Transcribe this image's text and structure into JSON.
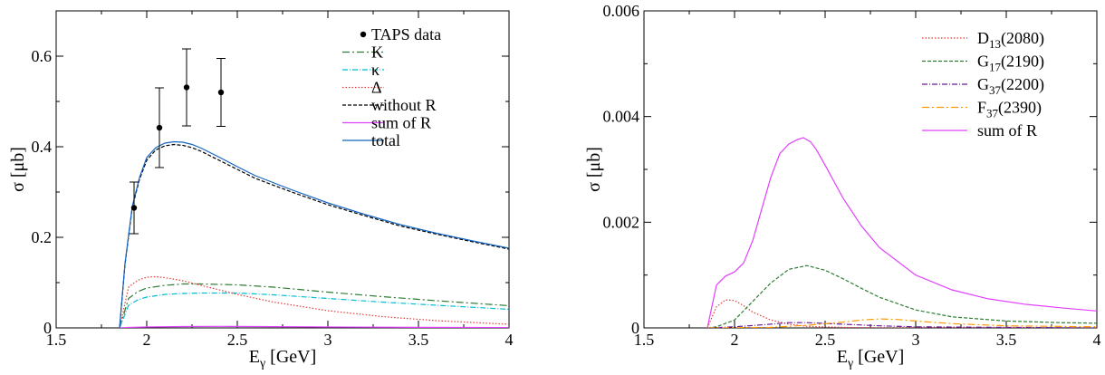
{
  "chart_data": [
    {
      "type": "line",
      "xlabel": "E",
      "xlabel_sub": "γ",
      "xlabel_unit": " [GeV]",
      "ylabel": "σ [μb]",
      "xlim": [
        1.5,
        4.0
      ],
      "ylim": [
        0,
        0.7
      ],
      "xticks": [
        1.5,
        2.0,
        2.5,
        3.0,
        3.5,
        4.0
      ],
      "xtick_labels": [
        "1.5",
        "2",
        "2.5",
        "3",
        "3.5",
        "4"
      ],
      "yticks": [
        0,
        0.2,
        0.4,
        0.6
      ],
      "ytick_labels": [
        "0",
        "0.2",
        "0.4",
        "0.6"
      ],
      "legend_position": "top-right",
      "data_points": {
        "name": "TAPS data",
        "x": [
          1.93,
          2.07,
          2.22,
          2.41
        ],
        "y": [
          0.265,
          0.442,
          0.531,
          0.52
        ],
        "err": [
          0.057,
          0.088,
          0.085,
          0.075
        ]
      },
      "series": [
        {
          "name": "K",
          "color": "#2e7d32",
          "dash": "8 3 2 3",
          "x": [
            1.85,
            1.9,
            1.95,
            2.0,
            2.1,
            2.2,
            2.3,
            2.5,
            2.7,
            3.0,
            3.3,
            3.6,
            4.0
          ],
          "y": [
            0,
            0.065,
            0.08,
            0.088,
            0.094,
            0.097,
            0.097,
            0.095,
            0.09,
            0.079,
            0.069,
            0.06,
            0.049
          ]
        },
        {
          "name": "κ",
          "color": "#00bcd4",
          "dash": "6 2 1 2",
          "x": [
            1.85,
            1.9,
            1.95,
            2.0,
            2.1,
            2.2,
            2.3,
            2.5,
            2.7,
            3.0,
            3.3,
            3.6,
            4.0
          ],
          "y": [
            0,
            0.05,
            0.062,
            0.068,
            0.074,
            0.076,
            0.077,
            0.077,
            0.073,
            0.065,
            0.057,
            0.05,
            0.041
          ]
        },
        {
          "name": "Δ",
          "color": "#e53935",
          "dash": "1.5 2",
          "x": [
            1.85,
            1.9,
            1.95,
            2.0,
            2.05,
            2.1,
            2.2,
            2.3,
            2.5,
            2.7,
            3.0,
            3.3,
            3.6,
            4.0
          ],
          "y": [
            0,
            0.09,
            0.105,
            0.112,
            0.113,
            0.111,
            0.104,
            0.094,
            0.074,
            0.057,
            0.038,
            0.025,
            0.016,
            0.008
          ]
        },
        {
          "name": "without R",
          "color": "#000000",
          "dash": "4 2",
          "x": [
            1.85,
            1.88,
            1.92,
            1.96,
            2.0,
            2.05,
            2.1,
            2.15,
            2.2,
            2.25,
            2.3,
            2.4,
            2.5,
            2.6,
            2.8,
            3.0,
            3.2,
            3.4,
            3.6,
            3.8,
            4.0
          ],
          "y": [
            0,
            0.14,
            0.265,
            0.328,
            0.37,
            0.393,
            0.402,
            0.405,
            0.403,
            0.398,
            0.39,
            0.37,
            0.35,
            0.33,
            0.3,
            0.272,
            0.248,
            0.225,
            0.207,
            0.19,
            0.174
          ]
        },
        {
          "name": "sum of R",
          "color": "#e040fb",
          "dash": "",
          "x": [
            1.85,
            1.9,
            2.0,
            2.2,
            2.4,
            2.6,
            3.0,
            3.5,
            4.0
          ],
          "y": [
            0,
            0.001,
            0.002,
            0.003,
            0.0035,
            0.003,
            0.002,
            0.0012,
            0.0008
          ]
        },
        {
          "name": "total",
          "color": "#1565c0",
          "dash": "",
          "x": [
            1.85,
            1.88,
            1.92,
            1.96,
            2.0,
            2.05,
            2.1,
            2.15,
            2.2,
            2.25,
            2.3,
            2.4,
            2.5,
            2.6,
            2.8,
            3.0,
            3.2,
            3.4,
            3.6,
            3.8,
            4.0
          ],
          "y": [
            0,
            0.142,
            0.268,
            0.332,
            0.376,
            0.398,
            0.408,
            0.411,
            0.41,
            0.405,
            0.397,
            0.377,
            0.356,
            0.336,
            0.305,
            0.276,
            0.251,
            0.228,
            0.209,
            0.192,
            0.176
          ]
        }
      ]
    },
    {
      "type": "line",
      "xlabel": "E",
      "xlabel_sub": "γ",
      "xlabel_unit": " [GeV]",
      "ylabel": "σ [μb]",
      "xlim": [
        1.5,
        4.0
      ],
      "ylim": [
        0,
        0.006
      ],
      "xticks": [
        1.5,
        2.0,
        2.5,
        3.0,
        3.5,
        4.0
      ],
      "xtick_labels": [
        "1.5",
        "2",
        "2.5",
        "3",
        "3.5",
        "4"
      ],
      "yticks": [
        0,
        0.002,
        0.004,
        0.006
      ],
      "ytick_labels": [
        "0",
        "0.002",
        "0.004",
        "0.006"
      ],
      "legend_position": "top-right",
      "series": [
        {
          "name": "D",
          "sub": "13",
          "suffix": "(2080)",
          "color": "#e53935",
          "dash": "1.5 2",
          "x": [
            1.85,
            1.9,
            1.95,
            2.0,
            2.05,
            2.1,
            2.2,
            2.3,
            2.4,
            2.6,
            2.8,
            3.0,
            4.0
          ],
          "y": [
            0,
            0.0004,
            0.00053,
            0.00052,
            0.00042,
            0.0003,
            0.00015,
            7e-05,
            3e-05,
            1e-05,
            0,
            0,
            0
          ]
        },
        {
          "name": "G",
          "sub": "17",
          "suffix": "(2190)",
          "color": "#2e7d32",
          "dash": "4 2",
          "x": [
            1.85,
            1.9,
            2.0,
            2.1,
            2.2,
            2.3,
            2.4,
            2.5,
            2.6,
            2.7,
            2.8,
            3.0,
            3.2,
            3.5,
            3.8,
            4.0
          ],
          "y": [
            0,
            2e-05,
            0.00015,
            0.0005,
            0.00085,
            0.00111,
            0.00118,
            0.00109,
            0.00093,
            0.00075,
            0.00058,
            0.00034,
            0.00021,
            0.00013,
            0.0001,
            9e-05
          ]
        },
        {
          "name": "G",
          "sub": "37",
          "suffix": "(2200)",
          "color": "#6a1b9a",
          "dash": "6 2 1 2",
          "x": [
            1.85,
            2.0,
            2.2,
            2.3,
            2.4,
            2.6,
            2.8,
            3.0,
            3.5,
            4.0
          ],
          "y": [
            0,
            2e-05,
            7e-05,
            0.0001,
            0.0001,
            7e-05,
            4e-05,
            2e-05,
            1e-05,
            0
          ]
        },
        {
          "name": "F",
          "sub": "37",
          "suffix": "(2390)",
          "color": "#ff9800",
          "dash": "8 3 2 3",
          "x": [
            1.85,
            2.2,
            2.4,
            2.6,
            2.7,
            2.8,
            2.9,
            3.0,
            3.2,
            3.5,
            4.0
          ],
          "y": [
            0,
            1e-05,
            5e-05,
            0.00011,
            0.00015,
            0.00017,
            0.00016,
            0.00013,
            8e-05,
            4e-05,
            2e-05
          ]
        },
        {
          "name": "sum of R",
          "sub": "",
          "suffix": "",
          "color": "#e040fb",
          "dash": "",
          "x": [
            1.85,
            1.9,
            1.95,
            2.0,
            2.05,
            2.1,
            2.15,
            2.2,
            2.25,
            2.3,
            2.35,
            2.38,
            2.42,
            2.45,
            2.5,
            2.6,
            2.7,
            2.8,
            3.0,
            3.2,
            3.4,
            3.6,
            3.8,
            4.0
          ],
          "y": [
            0,
            0.00081,
            0.00098,
            0.00106,
            0.00123,
            0.00165,
            0.00225,
            0.00285,
            0.0033,
            0.00348,
            0.00357,
            0.0036,
            0.00352,
            0.00338,
            0.00308,
            0.00245,
            0.00193,
            0.00152,
            0.001,
            0.00072,
            0.00055,
            0.00045,
            0.00038,
            0.00032
          ]
        }
      ]
    }
  ]
}
